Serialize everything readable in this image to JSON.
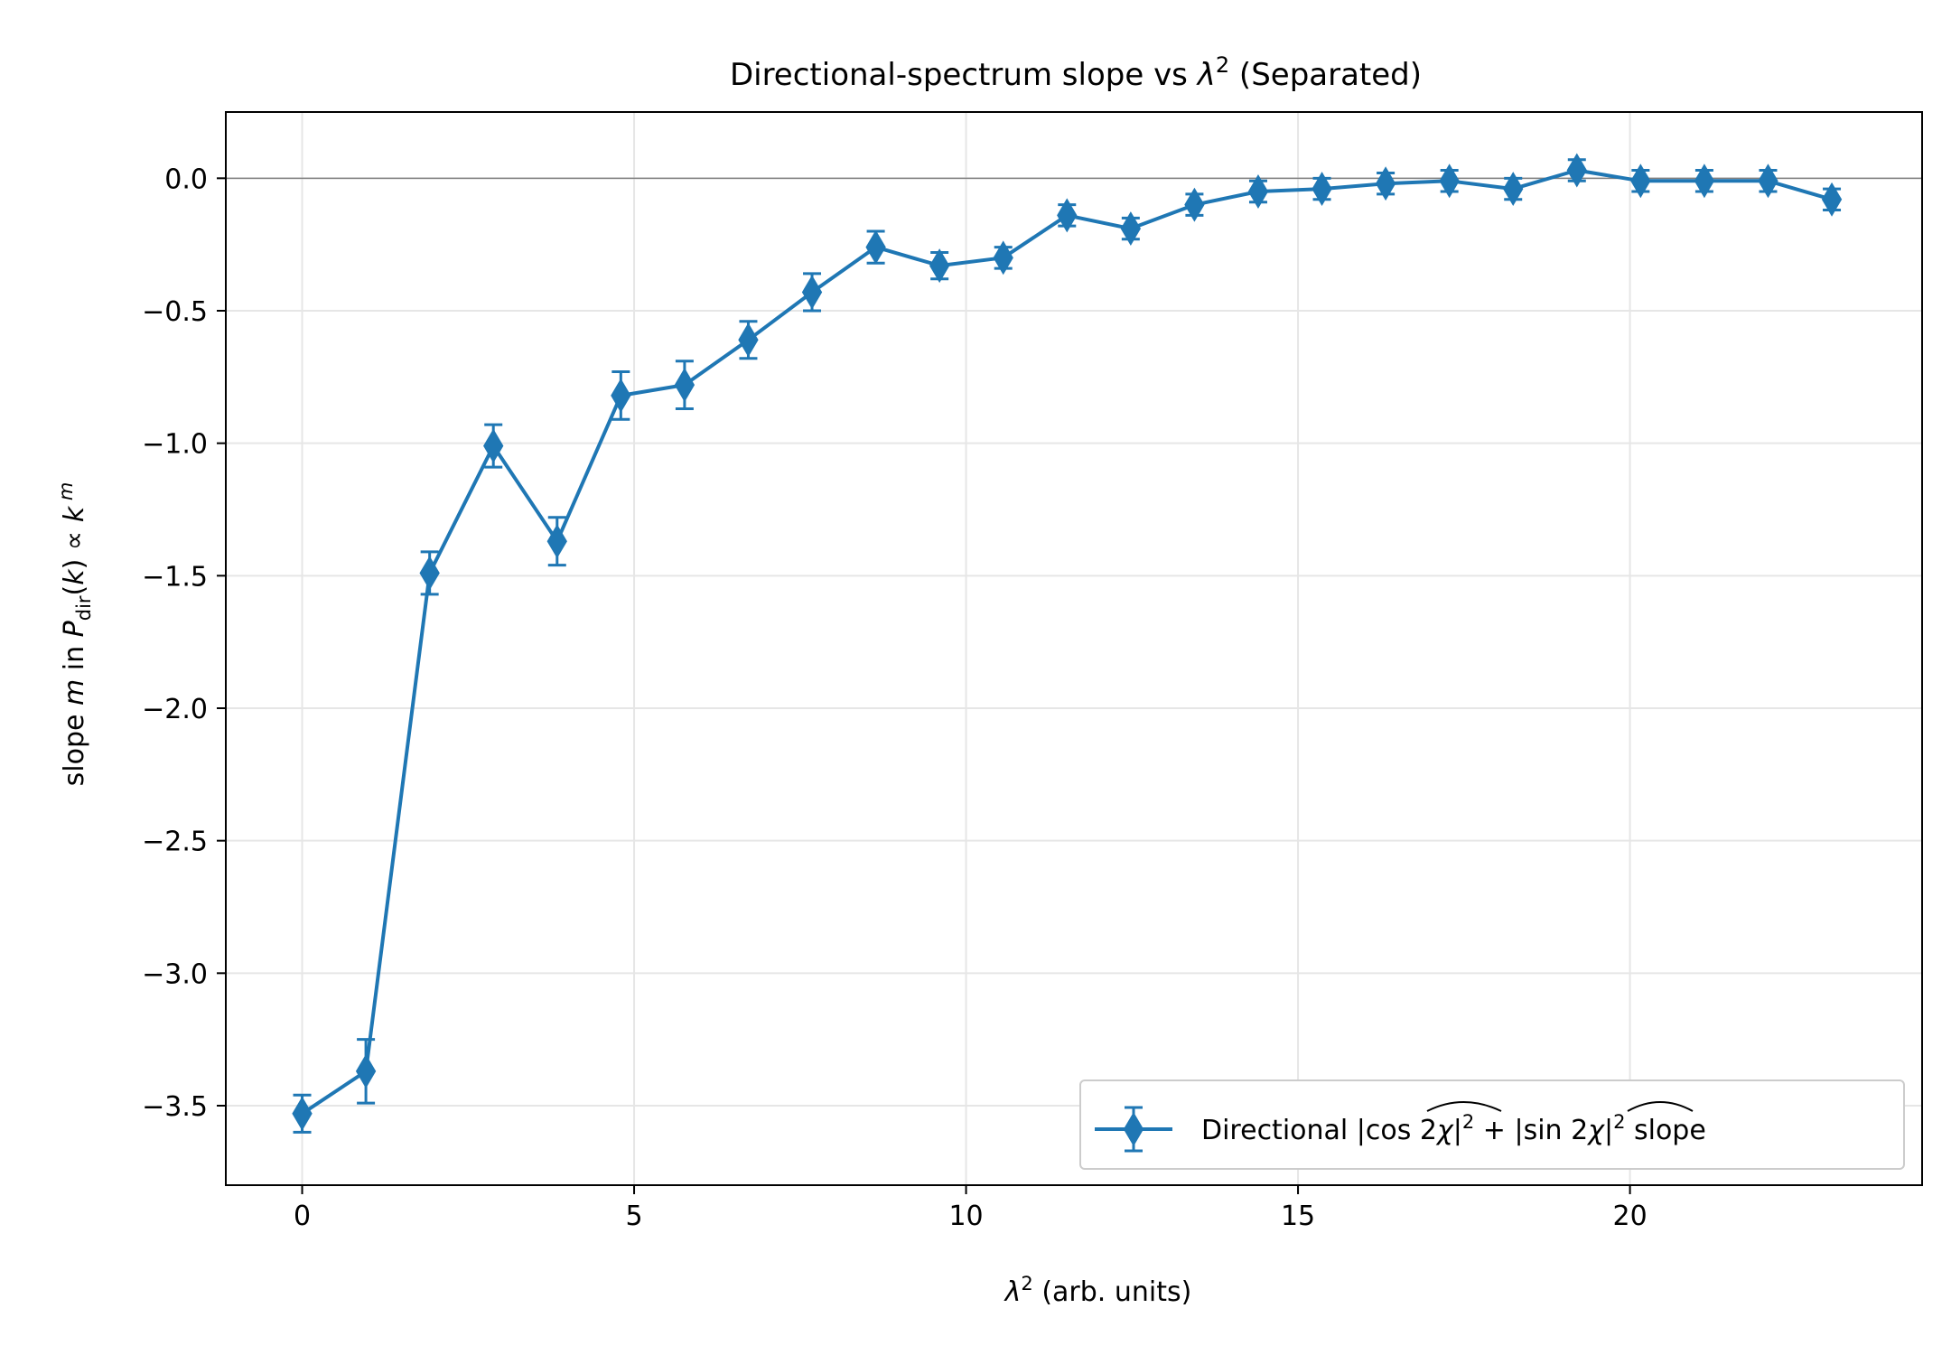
{
  "chart_data": {
    "type": "line",
    "title": "Directional-spectrum slope vs λ² (Separated)",
    "xlabel": "λ² (arb. units)",
    "ylabel": "slope m in P_dir(k) ∝ k^m",
    "xlim": [
      -1.15,
      24.4
    ],
    "ylim": [
      -3.8,
      0.25
    ],
    "xticks": [
      0,
      5,
      10,
      15,
      20
    ],
    "yticks": [
      0.0,
      -0.5,
      -1.0,
      -1.5,
      -2.0,
      -2.5,
      -3.0,
      -3.5
    ],
    "xtick_labels": [
      "0",
      "5",
      "10",
      "15",
      "20"
    ],
    "ytick_labels": [
      "0.0",
      "−0.5",
      "−1.0",
      "−1.5",
      "−2.0",
      "−2.5",
      "−3.0",
      "−3.5"
    ],
    "grid": true,
    "reference_line_y": 0,
    "legend_position": "lower right",
    "series": [
      {
        "name": "Directional |cos 2χ|² + |sin 2χ|² slope",
        "color": "#1f77b4",
        "marker": "thin-diamond",
        "x": [
          0,
          0.96,
          1.92,
          2.88,
          3.84,
          4.8,
          5.76,
          6.72,
          7.68,
          8.64,
          9.6,
          10.56,
          11.52,
          12.48,
          13.44,
          14.4,
          15.36,
          16.32,
          17.28,
          18.24,
          19.2,
          20.16,
          21.12,
          22.08,
          23.04
        ],
        "y": [
          -3.53,
          -3.37,
          -1.49,
          -1.01,
          -1.37,
          -0.82,
          -0.78,
          -0.61,
          -0.43,
          -0.26,
          -0.33,
          -0.3,
          -0.14,
          -0.19,
          -0.1,
          -0.05,
          -0.04,
          -0.02,
          -0.01,
          -0.04,
          0.03,
          -0.01,
          -0.01,
          -0.01,
          -0.08
        ],
        "yerr": [
          0.07,
          0.12,
          0.08,
          0.08,
          0.09,
          0.09,
          0.09,
          0.07,
          0.07,
          0.06,
          0.05,
          0.04,
          0.04,
          0.04,
          0.04,
          0.04,
          0.04,
          0.04,
          0.04,
          0.04,
          0.04,
          0.04,
          0.04,
          0.04,
          0.04
        ]
      }
    ]
  }
}
